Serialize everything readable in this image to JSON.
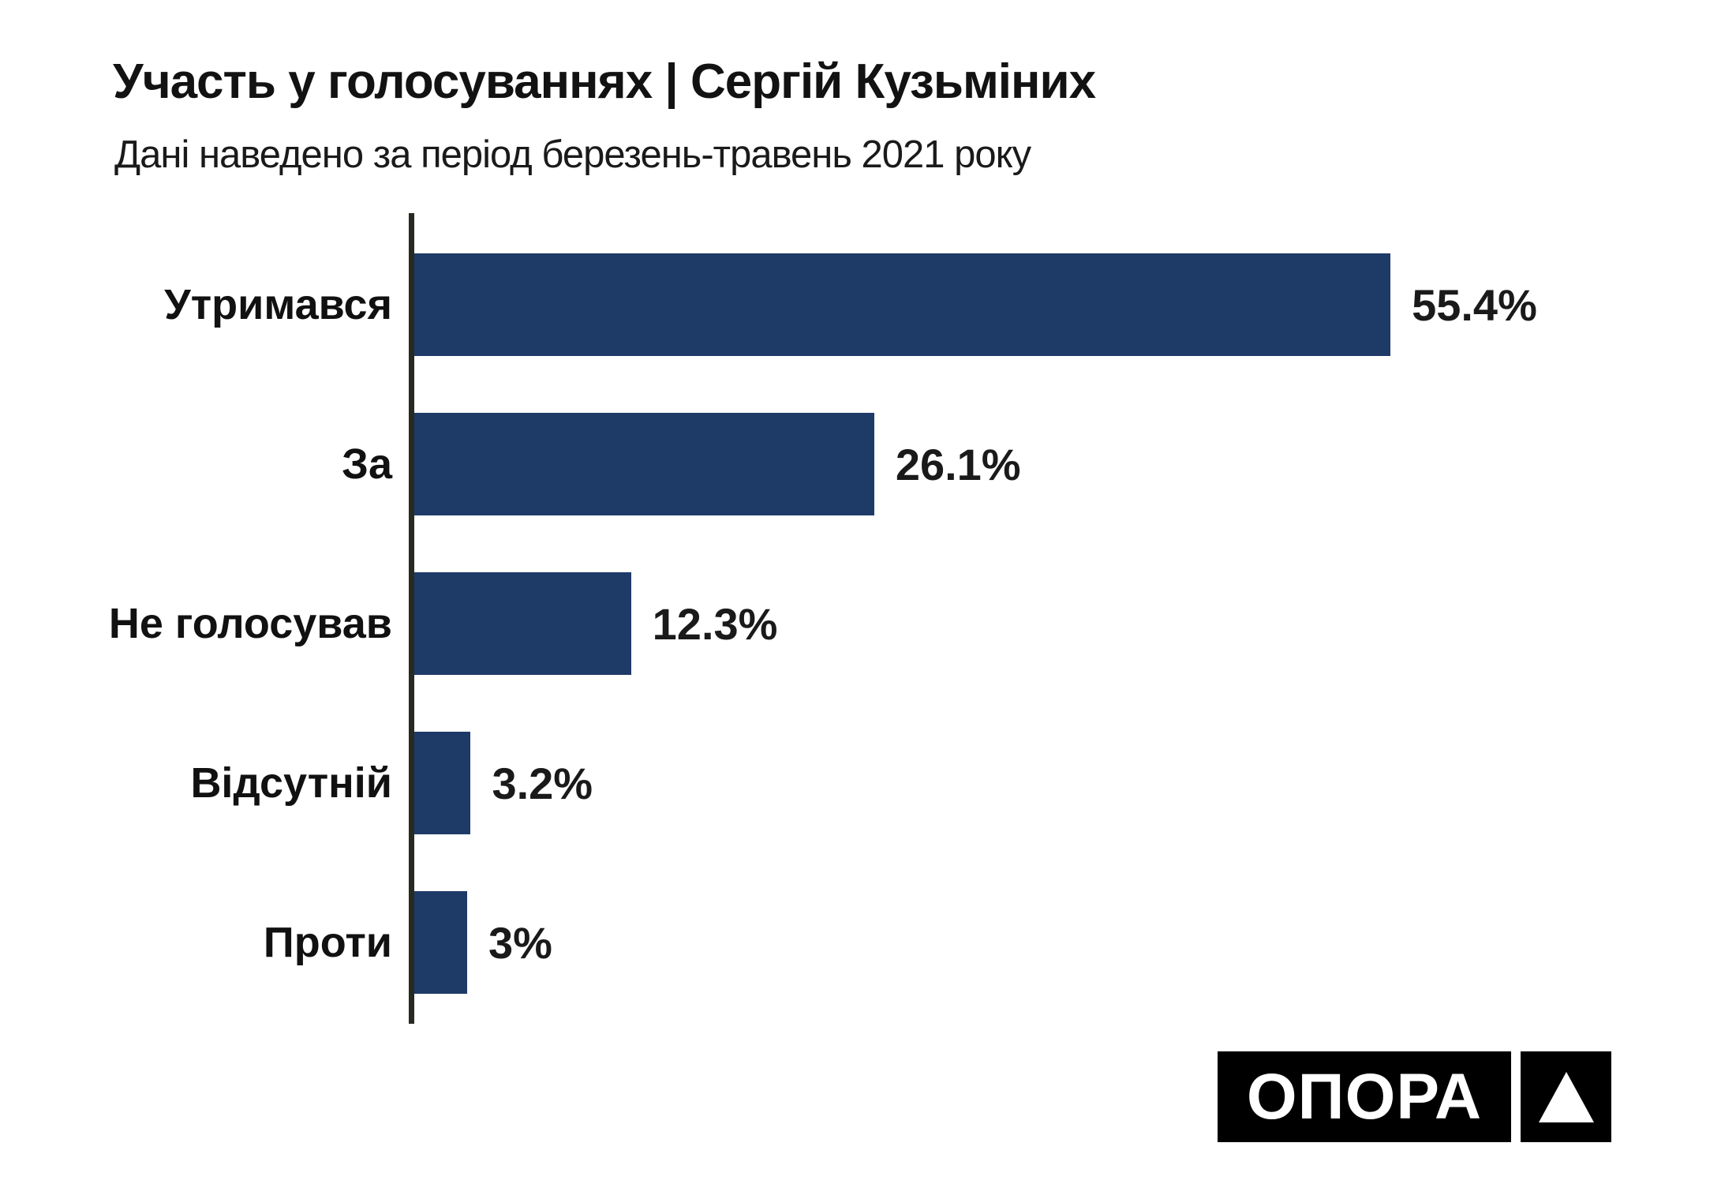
{
  "header": {
    "title": "Участь у голосуваннях | Сергій Кузьміних",
    "subtitle": "Дані наведено за період березень-травень 2021 року"
  },
  "chart_data": {
    "type": "bar",
    "orientation": "horizontal",
    "title": "Участь у голосуваннях | Сергій Кузьміних",
    "subtitle": "Дані наведено за період березень-травень 2021 року",
    "categories": [
      "Утримався",
      "За",
      "Не голосував",
      "Відсутній",
      "Проти"
    ],
    "values": [
      55.4,
      26.1,
      12.3,
      3.2,
      3
    ],
    "value_labels": [
      "55.4%",
      "26.1%",
      "12.3%",
      "3.2%",
      "3%"
    ],
    "xlabel": "",
    "ylabel": "",
    "xlim": [
      0,
      75
    ],
    "grid": false,
    "legend": false,
    "bar_color": "#1e3a67",
    "axis_color": "#262a21",
    "label_color": "#111111",
    "value_color": "#1a1a1a"
  },
  "logo": {
    "text": "ОПОРА",
    "icon": "triangle-up-icon",
    "bg_color": "#000000",
    "fg_color": "#ffffff"
  }
}
